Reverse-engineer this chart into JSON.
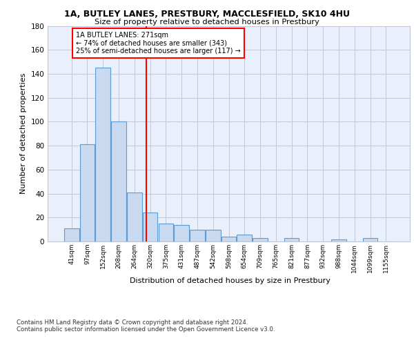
{
  "title1": "1A, BUTLEY LANES, PRESTBURY, MACCLESFIELD, SK10 4HU",
  "title2": "Size of property relative to detached houses in Prestbury",
  "xlabel": "Distribution of detached houses by size in Prestbury",
  "ylabel": "Number of detached properties",
  "bar_labels": [
    "41sqm",
    "97sqm",
    "152sqm",
    "208sqm",
    "264sqm",
    "320sqm",
    "375sqm",
    "431sqm",
    "487sqm",
    "542sqm",
    "598sqm",
    "654sqm",
    "709sqm",
    "765sqm",
    "821sqm",
    "877sqm",
    "932sqm",
    "988sqm",
    "1044sqm",
    "1099sqm",
    "1155sqm"
  ],
  "bar_values": [
    11,
    81,
    145,
    100,
    41,
    24,
    15,
    14,
    10,
    10,
    4,
    6,
    3,
    0,
    3,
    0,
    0,
    2,
    0,
    3,
    0
  ],
  "bar_color": "#c9d9f0",
  "bar_edge_color": "#5b9bd5",
  "grid_color": "#c0c8d8",
  "background_color": "#eaf0fb",
  "red_line_x": 4.74,
  "annotation_text": "1A BUTLEY LANES: 271sqm\n← 74% of detached houses are smaller (343)\n25% of semi-detached houses are larger (117) →",
  "ylim": [
    0,
    180
  ],
  "footnote": "Contains HM Land Registry data © Crown copyright and database right 2024.\nContains public sector information licensed under the Open Government Licence v3.0.",
  "yticks": [
    0,
    20,
    40,
    60,
    80,
    100,
    120,
    140,
    160,
    180
  ]
}
